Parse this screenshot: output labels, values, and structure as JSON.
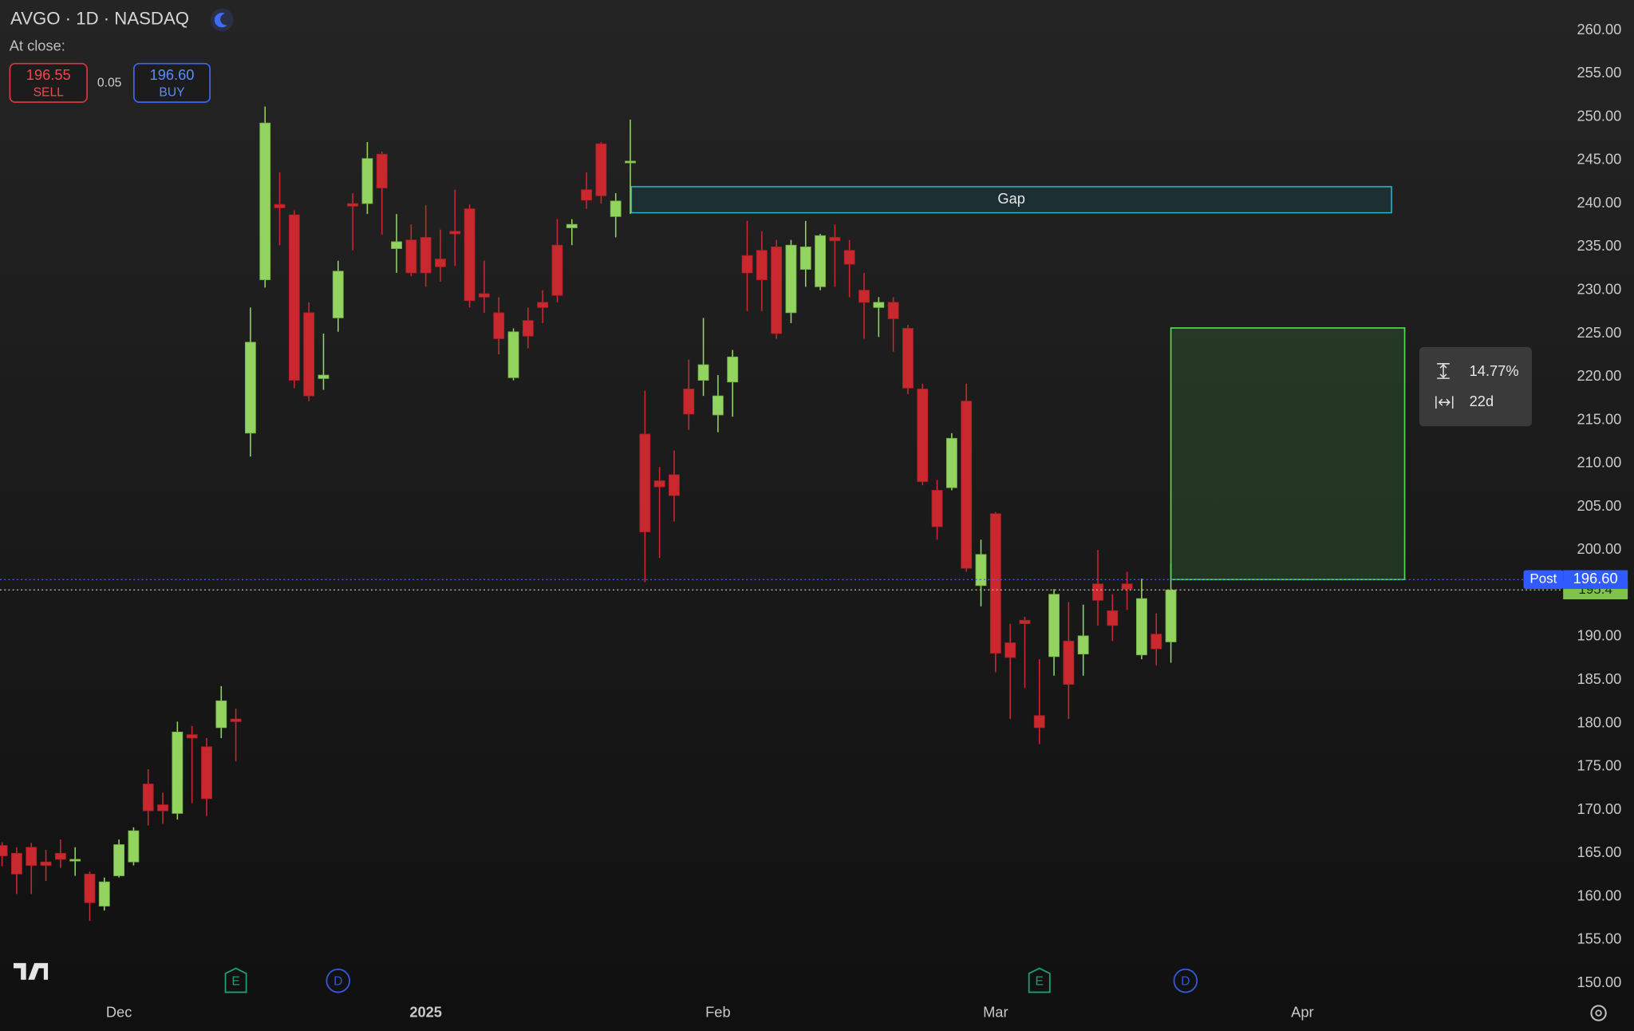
{
  "header": {
    "title": "AVGO · 1D · NASDAQ",
    "status": "At close:",
    "sell_price": "196.55",
    "sell_label": "SELL",
    "spread": "0.05",
    "buy_price": "196.60",
    "buy_label": "BUY"
  },
  "chart_data": {
    "type": "candlestick",
    "categories": [
      null,
      null,
      null,
      null,
      null,
      null,
      null,
      null,
      "Dec",
      null,
      null,
      null,
      null,
      null,
      null,
      null,
      null,
      null,
      null,
      null,
      null,
      null,
      null,
      null,
      null,
      null,
      null,
      null,
      null,
      "2025",
      null,
      null,
      null,
      null,
      null,
      null,
      null,
      null,
      null,
      null,
      null,
      null,
      null,
      null,
      null,
      null,
      null,
      null,
      null,
      "Feb",
      null,
      null,
      null,
      null,
      null,
      null,
      null,
      null,
      null,
      null,
      null,
      null,
      null,
      null,
      null,
      null,
      null,
      null,
      "Mar",
      null,
      null,
      null,
      null,
      null,
      null,
      null,
      null,
      null,
      null,
      null,
      null,
      null,
      null,
      null,
      null,
      null,
      null,
      null,
      null,
      "Apr"
    ],
    "open": [
      165.9,
      165.0,
      165.7,
      164.0,
      165.0,
      164.1,
      162.6,
      158.9,
      162.4,
      164.0,
      173.0,
      170.6,
      169.6,
      178.7,
      177.3,
      179.5,
      180.5,
      213.5,
      231.2,
      239.9,
      238.7,
      227.4,
      219.8,
      226.8,
      240.0,
      240.0,
      245.7,
      234.8,
      235.8,
      236.1,
      233.6,
      236.8,
      239.4,
      229.6,
      227.4,
      219.9,
      226.5,
      228.6,
      235.2,
      237.2,
      241.6,
      246.9,
      238.5,
      244.7,
      213.4,
      208.0,
      208.7,
      218.6,
      219.6,
      215.6,
      219.4,
      234.0,
      234.6,
      235.0,
      227.4,
      232.4,
      230.4,
      236.1,
      234.6,
      230.0,
      228.0,
      228.6,
      225.6,
      218.6,
      206.9,
      207.2,
      217.2,
      195.9,
      204.2,
      189.3,
      191.9,
      180.9,
      187.7,
      189.5,
      188.0,
      196.1,
      193.0,
      196.1,
      187.9,
      190.3,
      189.4,
      null,
      null,
      null,
      null,
      null,
      null,
      null,
      null,
      null
    ],
    "high": [
      166.3,
      165.7,
      166.2,
      165.4,
      166.6,
      165.7,
      162.9,
      162.2,
      166.6,
      168.0,
      174.7,
      172.0,
      180.2,
      179.7,
      178.3,
      184.3,
      181.7,
      228.0,
      251.2,
      243.6,
      239.2,
      228.6,
      225.0,
      233.4,
      241.2,
      247.1,
      246.0,
      238.8,
      237.6,
      239.8,
      237.0,
      241.6,
      239.9,
      233.4,
      229.2,
      225.6,
      228.0,
      230.0,
      238.2,
      238.2,
      243.6,
      247.1,
      241.2,
      249.7,
      218.4,
      209.6,
      211.5,
      222.0,
      226.8,
      220.2,
      223.1,
      238.0,
      236.8,
      235.8,
      235.8,
      238.0,
      236.5,
      237.6,
      235.8,
      232.0,
      229.2,
      229.2,
      226.0,
      219.2,
      208.1,
      213.5,
      219.2,
      201.2,
      204.4,
      191.5,
      192.3,
      187.4,
      195.5,
      194.0,
      193.7,
      200.0,
      194.9,
      197.5,
      196.7,
      192.7,
      198.5,
      null,
      null,
      null,
      null,
      null,
      null,
      null,
      null,
      null
    ],
    "low": [
      163.5,
      160.3,
      160.3,
      161.8,
      163.3,
      162.4,
      157.2,
      158.4,
      162.2,
      163.6,
      168.2,
      168.4,
      168.9,
      170.8,
      169.3,
      178.3,
      175.6,
      210.8,
      230.3,
      235.2,
      218.7,
      217.2,
      218.5,
      225.2,
      234.6,
      238.8,
      236.4,
      232.0,
      231.6,
      230.4,
      231.0,
      232.8,
      228.0,
      227.4,
      222.6,
      219.6,
      223.3,
      226.2,
      228.6,
      235.2,
      239.4,
      240.0,
      236.1,
      238.8,
      196.3,
      199.1,
      203.3,
      213.9,
      217.8,
      213.6,
      215.4,
      227.6,
      227.6,
      224.4,
      226.2,
      230.4,
      230.0,
      230.4,
      229.2,
      224.4,
      224.6,
      222.9,
      218.0,
      207.5,
      201.2,
      206.9,
      197.5,
      193.5,
      185.9,
      180.5,
      184.1,
      177.6,
      185.5,
      180.5,
      185.5,
      191.3,
      189.5,
      193.1,
      187.4,
      186.7,
      187.0,
      null,
      null,
      null,
      null,
      null,
      null,
      null,
      null,
      null
    ],
    "close": [
      164.7,
      162.6,
      163.6,
      163.6,
      164.3,
      164.3,
      159.3,
      161.7,
      166.0,
      167.6,
      169.9,
      169.9,
      179.0,
      178.3,
      171.3,
      182.6,
      180.2,
      224.0,
      249.3,
      239.5,
      219.6,
      217.8,
      220.2,
      232.2,
      239.7,
      245.2,
      241.8,
      235.6,
      232.0,
      232.0,
      232.7,
      236.5,
      228.8,
      229.2,
      224.4,
      225.2,
      224.7,
      228.0,
      229.4,
      237.6,
      240.4,
      240.9,
      240.3,
      244.9,
      202.1,
      207.3,
      206.3,
      215.7,
      221.4,
      217.8,
      222.3,
      232.0,
      231.2,
      225.0,
      235.2,
      235.0,
      236.3,
      235.7,
      233.0,
      228.6,
      228.6,
      226.7,
      218.7,
      207.9,
      202.7,
      212.9,
      197.9,
      199.5,
      188.1,
      187.6,
      191.5,
      179.5,
      194.9,
      184.5,
      190.1,
      194.2,
      191.3,
      195.5,
      194.4,
      188.6,
      195.4,
      null,
      null,
      null,
      null,
      null,
      null,
      null,
      null,
      null
    ],
    "event_markers": [
      null,
      null,
      null,
      null,
      null,
      null,
      null,
      null,
      null,
      null,
      null,
      null,
      null,
      null,
      null,
      null,
      "E",
      null,
      null,
      null,
      null,
      null,
      null,
      "D",
      null,
      null,
      null,
      null,
      null,
      null,
      null,
      null,
      null,
      null,
      null,
      null,
      null,
      null,
      null,
      null,
      null,
      null,
      null,
      null,
      null,
      null,
      null,
      null,
      null,
      null,
      null,
      null,
      null,
      null,
      null,
      null,
      null,
      null,
      null,
      null,
      null,
      null,
      null,
      null,
      null,
      null,
      null,
      null,
      null,
      null,
      null,
      "E",
      null,
      null,
      null,
      null,
      null,
      null,
      null,
      null,
      null,
      "D",
      null,
      null,
      null,
      null,
      null,
      null,
      null,
      null
    ],
    "up_color": "#93d35f",
    "down_color": "#c9282f",
    "ylim": [
      148.6,
      263.5
    ],
    "yticks": [
      {
        "value": 150,
        "label": "150.00"
      },
      {
        "value": 155,
        "label": "155.00"
      },
      {
        "value": 160,
        "label": "160.00"
      },
      {
        "value": 165,
        "label": "165.00"
      },
      {
        "value": 170,
        "label": "170.00"
      },
      {
        "value": 175,
        "label": "175.00"
      },
      {
        "value": 180,
        "label": "180.00"
      },
      {
        "value": 185,
        "label": "185.00"
      },
      {
        "value": 190,
        "label": "190.00"
      },
      {
        "value": 195,
        "label": "195.00"
      },
      {
        "value": 200,
        "label": "200.00"
      },
      {
        "value": 205,
        "label": "205.00"
      },
      {
        "value": 210,
        "label": "210.00"
      },
      {
        "value": 215,
        "label": "215.00"
      },
      {
        "value": 220,
        "label": "220.00"
      },
      {
        "value": 225,
        "label": "225.00"
      },
      {
        "value": 230,
        "label": "230.00"
      },
      {
        "value": 235,
        "label": "235.00"
      },
      {
        "value": 240,
        "label": "240.00"
      },
      {
        "value": 245,
        "label": "245.00"
      },
      {
        "value": 250,
        "label": "250.00"
      },
      {
        "value": 255,
        "label": "255.00"
      },
      {
        "value": 260,
        "label": "260.00"
      }
    ],
    "post_price": {
      "label": "Post",
      "value": 196.6,
      "value_label": "196.60"
    },
    "gap": {
      "label": "Gap",
      "top": 241.95,
      "bottom": 238.94
    },
    "measure": {
      "from": 196.6,
      "to": 225.64,
      "percent": "14.77%",
      "duration": "22d"
    }
  }
}
